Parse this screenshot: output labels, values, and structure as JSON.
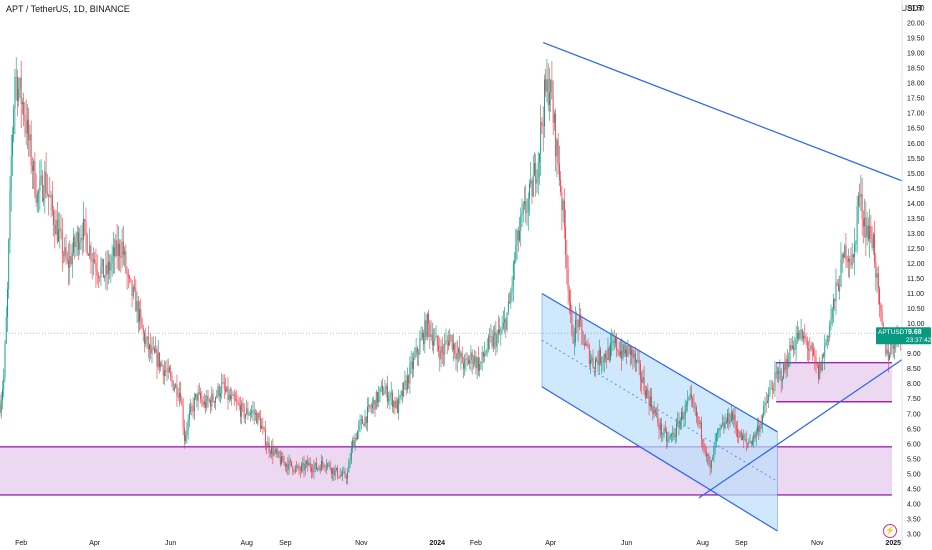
{
  "header": {
    "symbol_line": "APT / TetherUS, 1D, BINANCE",
    "currency": "USDT"
  },
  "price_tag": {
    "symbol": "APTUSDT",
    "price": "9.68",
    "countdown": "23:37:42",
    "color": "#089981"
  },
  "colors": {
    "up": "#089981",
    "down": "#f23645",
    "trendline": "#2962ff",
    "zone_fill": "#e1bee7",
    "zone_border": "#9c27b0",
    "channel_fill": "#bbdefb"
  },
  "chart_data": {
    "type": "candlestick",
    "y_axis": {
      "min": 3.0,
      "max": 20.5,
      "step": 0.5,
      "ticks": [
        "3.00",
        "3.50",
        "4.00",
        "4.50",
        "5.00",
        "5.50",
        "6.00",
        "6.50",
        "7.00",
        "7.50",
        "8.00",
        "8.50",
        "9.00",
        "9.50",
        "10.00",
        "10.50",
        "11.00",
        "11.50",
        "12.00",
        "12.50",
        "13.00",
        "13.50",
        "14.00",
        "14.50",
        "15.00",
        "15.50",
        "16.00",
        "16.50",
        "17.00",
        "17.50",
        "18.00",
        "18.50",
        "19.00",
        "19.50",
        "20.00",
        "20.50"
      ],
      "position": "right"
    },
    "x_axis": {
      "start": "2023-01-15",
      "end": "2025-01-08",
      "ticks": [
        {
          "date": "2023-02-01",
          "label": "Feb"
        },
        {
          "date": "2023-04-01",
          "label": "Apr"
        },
        {
          "date": "2023-06-01",
          "label": "Jun"
        },
        {
          "date": "2023-08-01",
          "label": "Aug"
        },
        {
          "date": "2023-09-01",
          "label": "Sep"
        },
        {
          "date": "2023-11-01",
          "label": "Nov"
        },
        {
          "date": "2024-01-01",
          "label": "2024",
          "bold": true
        },
        {
          "date": "2024-02-01",
          "label": "Feb"
        },
        {
          "date": "2024-04-01",
          "label": "Apr"
        },
        {
          "date": "2024-06-01",
          "label": "Jun"
        },
        {
          "date": "2024-08-01",
          "label": "Aug"
        },
        {
          "date": "2024-09-01",
          "label": "Sep"
        },
        {
          "date": "2024-11-01",
          "label": "Nov"
        },
        {
          "date": "2025-01-01",
          "label": "2025",
          "bold": true
        }
      ]
    },
    "grid": false,
    "price_path": [
      [
        "2023-01-15",
        7.3
      ],
      [
        "2023-01-18",
        8.2
      ],
      [
        "2023-01-21",
        11.0
      ],
      [
        "2023-01-24",
        15.5
      ],
      [
        "2023-01-27",
        18.3
      ],
      [
        "2023-01-30",
        17.8
      ],
      [
        "2023-02-03",
        17.2
      ],
      [
        "2023-02-08",
        15.8
      ],
      [
        "2023-02-14",
        14.2
      ],
      [
        "2023-02-20",
        14.8
      ],
      [
        "2023-02-26",
        13.7
      ],
      [
        "2023-03-04",
        12.8
      ],
      [
        "2023-03-10",
        11.9
      ],
      [
        "2023-03-16",
        12.6
      ],
      [
        "2023-03-22",
        13.2
      ],
      [
        "2023-03-28",
        12.5
      ],
      [
        "2023-04-03",
        11.9
      ],
      [
        "2023-04-10",
        11.6
      ],
      [
        "2023-04-17",
        12.3
      ],
      [
        "2023-04-23",
        12.6
      ],
      [
        "2023-04-28",
        11.3
      ],
      [
        "2023-05-04",
        10.7
      ],
      [
        "2023-05-10",
        9.6
      ],
      [
        "2023-05-16",
        9.0
      ],
      [
        "2023-05-22",
        8.8
      ],
      [
        "2023-05-28",
        8.4
      ],
      [
        "2023-06-03",
        8.0
      ],
      [
        "2023-06-09",
        7.7
      ],
      [
        "2023-06-12",
        6.2
      ],
      [
        "2023-06-16",
        6.9
      ],
      [
        "2023-06-22",
        7.6
      ],
      [
        "2023-06-28",
        7.3
      ],
      [
        "2023-07-05",
        7.5
      ],
      [
        "2023-07-12",
        7.9
      ],
      [
        "2023-07-18",
        7.5
      ],
      [
        "2023-07-24",
        7.3
      ],
      [
        "2023-07-30",
        7.0
      ],
      [
        "2023-08-05",
        7.1
      ],
      [
        "2023-08-11",
        6.8
      ],
      [
        "2023-08-17",
        6.0
      ],
      [
        "2023-08-23",
        5.7
      ],
      [
        "2023-08-29",
        5.4
      ],
      [
        "2023-09-05",
        5.3
      ],
      [
        "2023-09-12",
        5.1
      ],
      [
        "2023-09-19",
        5.3
      ],
      [
        "2023-09-26",
        5.2
      ],
      [
        "2023-10-03",
        5.4
      ],
      [
        "2023-10-10",
        5.1
      ],
      [
        "2023-10-17",
        4.9
      ],
      [
        "2023-10-21",
        5.0
      ],
      [
        "2023-10-25",
        6.0
      ],
      [
        "2023-10-31",
        6.6
      ],
      [
        "2023-11-06",
        7.0
      ],
      [
        "2023-11-12",
        7.4
      ],
      [
        "2023-11-18",
        7.8
      ],
      [
        "2023-11-24",
        7.6
      ],
      [
        "2023-11-30",
        7.2
      ],
      [
        "2023-12-06",
        7.9
      ],
      [
        "2023-12-12",
        8.6
      ],
      [
        "2023-12-18",
        9.3
      ],
      [
        "2023-12-24",
        10.0
      ],
      [
        "2023-12-30",
        9.4
      ],
      [
        "2024-01-05",
        9.0
      ],
      [
        "2024-01-11",
        9.6
      ],
      [
        "2024-01-17",
        9.0
      ],
      [
        "2024-01-23",
        8.6
      ],
      [
        "2024-01-29",
        8.9
      ],
      [
        "2024-02-04",
        8.6
      ],
      [
        "2024-02-10",
        9.2
      ],
      [
        "2024-02-16",
        9.5
      ],
      [
        "2024-02-22",
        9.7
      ],
      [
        "2024-02-28",
        10.6
      ],
      [
        "2024-03-04",
        12.5
      ],
      [
        "2024-03-10",
        13.6
      ],
      [
        "2024-03-16",
        14.3
      ],
      [
        "2024-03-22",
        15.6
      ],
      [
        "2024-03-27",
        17.5
      ],
      [
        "2024-03-31",
        18.0
      ],
      [
        "2024-04-04",
        16.5
      ],
      [
        "2024-04-08",
        15.0
      ],
      [
        "2024-04-13",
        12.7
      ],
      [
        "2024-04-18",
        9.5
      ],
      [
        "2024-04-23",
        10.1
      ],
      [
        "2024-04-29",
        9.2
      ],
      [
        "2024-05-05",
        8.7
      ],
      [
        "2024-05-11",
        8.9
      ],
      [
        "2024-05-17",
        9.0
      ],
      [
        "2024-05-23",
        9.3
      ],
      [
        "2024-05-29",
        9.0
      ],
      [
        "2024-06-04",
        9.1
      ],
      [
        "2024-06-10",
        8.5
      ],
      [
        "2024-06-16",
        7.8
      ],
      [
        "2024-06-22",
        7.2
      ],
      [
        "2024-06-28",
        6.5
      ],
      [
        "2024-07-04",
        6.1
      ],
      [
        "2024-07-10",
        6.4
      ],
      [
        "2024-07-16",
        7.0
      ],
      [
        "2024-07-22",
        7.4
      ],
      [
        "2024-07-28",
        6.8
      ],
      [
        "2024-08-03",
        5.9
      ],
      [
        "2024-08-07",
        5.1
      ],
      [
        "2024-08-12",
        6.2
      ],
      [
        "2024-08-18",
        6.6
      ],
      [
        "2024-08-24",
        7.0
      ],
      [
        "2024-08-30",
        6.3
      ],
      [
        "2024-09-05",
        6.0
      ],
      [
        "2024-09-11",
        6.2
      ],
      [
        "2024-09-17",
        6.8
      ],
      [
        "2024-09-23",
        7.6
      ],
      [
        "2024-09-29",
        8.2
      ],
      [
        "2024-10-05",
        8.4
      ],
      [
        "2024-10-11",
        9.2
      ],
      [
        "2024-10-17",
        9.6
      ],
      [
        "2024-10-23",
        9.4
      ],
      [
        "2024-10-29",
        8.8
      ],
      [
        "2024-11-02",
        8.3
      ],
      [
        "2024-11-06",
        9.0
      ],
      [
        "2024-11-12",
        10.2
      ],
      [
        "2024-11-18",
        11.4
      ],
      [
        "2024-11-24",
        12.5
      ],
      [
        "2024-11-30",
        12.0
      ],
      [
        "2024-12-04",
        14.3
      ],
      [
        "2024-12-08",
        13.6
      ],
      [
        "2024-12-12",
        13.0
      ],
      [
        "2024-12-16",
        12.8
      ],
      [
        "2024-12-20",
        10.8
      ],
      [
        "2024-12-24",
        9.4
      ],
      [
        "2024-12-28",
        9.0
      ],
      [
        "2025-01-01",
        9.4
      ],
      [
        "2025-01-05",
        9.7
      ],
      [
        "2025-01-08",
        9.68
      ]
    ],
    "drawings": {
      "support_zone": {
        "from": "2023-01-15",
        "to": "2024-12-31",
        "low": 4.3,
        "high": 5.9
      },
      "resistance_zone": {
        "from": "2024-09-29",
        "to": "2024-12-31",
        "low": 7.4,
        "high": 8.7
      },
      "descending_trendline": {
        "from": [
          "2024-03-26",
          19.35
        ],
        "to": [
          "2025-01-08",
          14.75
        ]
      },
      "ascending_trendline": {
        "from": [
          "2024-07-29",
          4.2
        ],
        "to": [
          "2025-01-08",
          8.8
        ]
      },
      "channel": {
        "upper": {
          "from": [
            "2024-03-25",
            11.0
          ],
          "to": [
            "2024-09-30",
            6.4
          ]
        },
        "lower": {
          "from": [
            "2024-03-25",
            7.9
          ],
          "to": [
            "2024-09-30",
            3.1
          ]
        },
        "mid_dashed": {
          "from": [
            "2024-03-25",
            9.45
          ],
          "to": [
            "2024-09-30",
            4.75
          ]
        }
      },
      "current_price_line": 9.68
    }
  }
}
